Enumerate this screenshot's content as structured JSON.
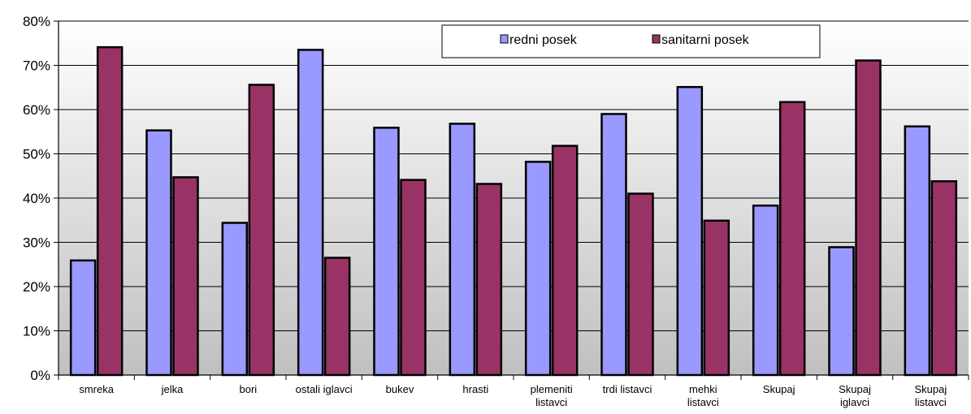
{
  "chart_data": {
    "type": "bar",
    "categories": [
      [
        "smreka"
      ],
      [
        "jelka"
      ],
      [
        "bori"
      ],
      [
        "ostali iglavci"
      ],
      [
        "bukev"
      ],
      [
        "hrasti"
      ],
      [
        "plemeniti",
        "listavci"
      ],
      [
        "trdi listavci"
      ],
      [
        "mehki",
        "listavci"
      ],
      [
        "Skupaj"
      ],
      [
        "Skupaj",
        "iglavci"
      ],
      [
        "Skupaj",
        "listavci"
      ]
    ],
    "series": [
      {
        "name": "redni posek",
        "color": "#9999ff",
        "values": [
          25.9,
          55.3,
          34.4,
          73.5,
          55.9,
          56.8,
          48.2,
          59.0,
          65.1,
          38.3,
          28.9,
          56.2
        ]
      },
      {
        "name": "sanitarni posek",
        "color": "#993366",
        "values": [
          74.1,
          44.7,
          65.6,
          26.5,
          44.1,
          43.2,
          51.8,
          41.0,
          34.9,
          61.7,
          71.1,
          43.8
        ]
      }
    ],
    "ylim": [
      0,
      80
    ],
    "yticks": [
      "0%",
      "10%",
      "20%",
      "30%",
      "40%",
      "50%",
      "60%",
      "70%",
      "80%"
    ],
    "grid": true,
    "legend_position": "top-center"
  }
}
